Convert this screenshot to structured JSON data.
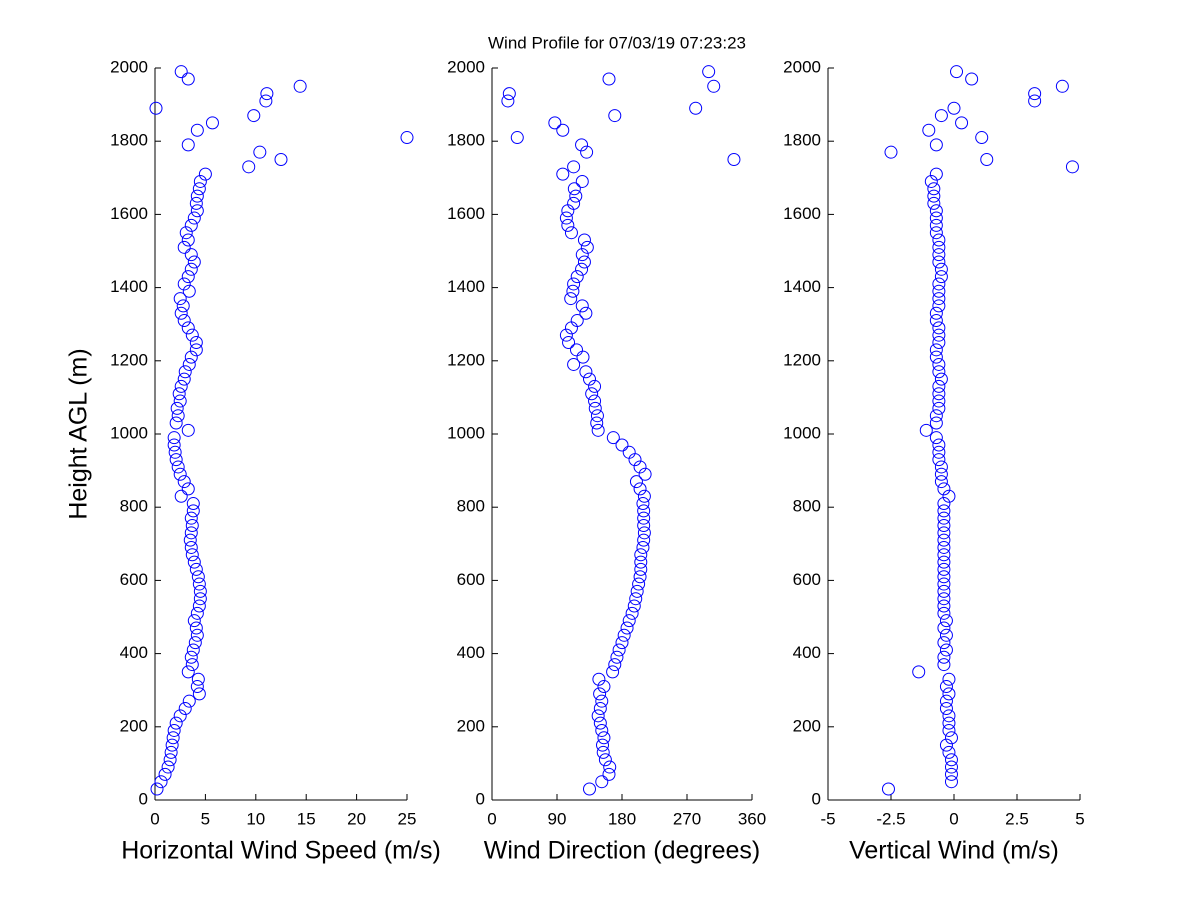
{
  "chart_data": [
    {
      "type": "scatter",
      "xlabel": "Horizontal Wind Speed (m/s)",
      "ylabel": "Height AGL (m)",
      "color": "#0000ff",
      "xlim": [
        0,
        25
      ],
      "xticks": [
        0,
        5,
        10,
        15,
        20,
        25
      ],
      "ylim": [
        0,
        2000
      ],
      "yticks": [
        0,
        200,
        400,
        600,
        800,
        1000,
        1200,
        1400,
        1600,
        1800,
        2000
      ],
      "x": [
        0.2,
        0.6,
        1.0,
        1.3,
        1.5,
        1.6,
        1.7,
        1.8,
        1.9,
        2.1,
        2.5,
        3.0,
        3.4,
        4.4,
        4.2,
        4.3,
        3.3,
        3.7,
        3.6,
        3.8,
        4.0,
        4.2,
        4.1,
        3.9,
        4.2,
        4.4,
        4.5,
        4.5,
        4.4,
        4.3,
        4.1,
        3.9,
        3.7,
        3.6,
        3.5,
        3.6,
        3.7,
        3.6,
        3.8,
        3.8,
        2.6,
        3.3,
        2.9,
        2.5,
        2.3,
        2.1,
        2.0,
        1.9,
        1.9,
        3.3,
        2.1,
        2.3,
        2.2,
        2.5,
        2.4,
        2.6,
        2.9,
        3.0,
        3.4,
        3.6,
        4.1,
        4.1,
        3.7,
        3.3,
        2.9,
        2.6,
        2.8,
        2.5,
        3.4,
        2.9,
        3.3,
        3.6,
        3.9,
        3.6,
        2.9,
        3.3,
        3.1,
        3.6,
        3.9,
        4.2,
        4.1,
        4.2,
        4.4,
        4.5,
        5.0,
        9.3,
        12.5,
        10.4,
        3.3,
        25.0,
        4.2,
        5.7,
        9.8,
        0.1,
        11.0,
        11.1,
        14.4,
        3.3,
        2.6
      ],
      "y": [
        30,
        50,
        70,
        90,
        110,
        130,
        150,
        170,
        190,
        210,
        230,
        250,
        270,
        290,
        310,
        330,
        350,
        370,
        390,
        410,
        430,
        450,
        470,
        490,
        510,
        530,
        550,
        570,
        590,
        610,
        630,
        650,
        670,
        690,
        710,
        730,
        750,
        770,
        790,
        810,
        830,
        850,
        870,
        890,
        910,
        930,
        950,
        970,
        990,
        1010,
        1030,
        1050,
        1070,
        1090,
        1110,
        1130,
        1150,
        1170,
        1190,
        1210,
        1230,
        1250,
        1270,
        1290,
        1310,
        1330,
        1350,
        1370,
        1390,
        1410,
        1430,
        1450,
        1470,
        1490,
        1510,
        1530,
        1550,
        1570,
        1590,
        1610,
        1630,
        1650,
        1670,
        1690,
        1710,
        1730,
        1750,
        1770,
        1790,
        1810,
        1830,
        1850,
        1870,
        1890,
        1910,
        1930,
        1950,
        1970,
        1990
      ]
    },
    {
      "type": "scatter",
      "title": "Wind Profile for  07/03/19 07:23:23",
      "xlabel": "Wind Direction (degrees)",
      "color": "#0000ff",
      "xlim": [
        0,
        360
      ],
      "xticks": [
        0,
        90,
        180,
        270,
        360
      ],
      "ylim": [
        0,
        2000
      ],
      "yticks": [
        0,
        200,
        400,
        600,
        800,
        1000,
        1200,
        1400,
        1600,
        1800,
        2000
      ],
      "x": [
        135,
        152,
        162,
        163,
        157,
        154,
        153,
        155,
        152,
        150,
        147,
        150,
        152,
        149,
        155,
        148,
        167,
        170,
        173,
        176,
        180,
        183,
        187,
        190,
        194,
        197,
        199,
        201,
        203,
        205,
        206,
        206,
        206,
        209,
        210,
        211,
        210,
        210,
        210,
        209,
        211,
        205,
        200,
        212,
        205,
        198,
        190,
        180,
        168,
        147,
        145,
        146,
        143,
        142,
        138,
        142,
        135,
        130,
        113,
        126,
        117,
        106,
        103,
        110,
        118,
        130,
        125,
        109,
        112,
        113,
        118,
        124,
        128,
        125,
        132,
        128,
        110,
        105,
        103,
        105,
        113,
        116,
        114,
        125,
        98,
        113,
        335,
        131,
        124,
        35,
        98,
        87,
        170,
        282,
        22,
        24,
        307,
        162,
        300
      ],
      "y": [
        30,
        50,
        70,
        90,
        110,
        130,
        150,
        170,
        190,
        210,
        230,
        250,
        270,
        290,
        310,
        330,
        350,
        370,
        390,
        410,
        430,
        450,
        470,
        490,
        510,
        530,
        550,
        570,
        590,
        610,
        630,
        650,
        670,
        690,
        710,
        730,
        750,
        770,
        790,
        810,
        830,
        850,
        870,
        890,
        910,
        930,
        950,
        970,
        990,
        1010,
        1030,
        1050,
        1070,
        1090,
        1110,
        1130,
        1150,
        1170,
        1190,
        1210,
        1230,
        1250,
        1270,
        1290,
        1310,
        1330,
        1350,
        1370,
        1390,
        1410,
        1430,
        1450,
        1470,
        1490,
        1510,
        1530,
        1550,
        1570,
        1590,
        1610,
        1630,
        1650,
        1670,
        1690,
        1710,
        1730,
        1750,
        1770,
        1790,
        1810,
        1830,
        1850,
        1870,
        1890,
        1910,
        1930,
        1950,
        1970,
        1990
      ]
    },
    {
      "type": "scatter",
      "xlabel": "Vertical Wind (m/s)",
      "color": "#0000ff",
      "xlim": [
        -5,
        5
      ],
      "xticks": [
        -5,
        -2.5,
        0,
        2.5,
        5
      ],
      "ylim": [
        0,
        2000
      ],
      "yticks": [
        0,
        200,
        400,
        600,
        800,
        1000,
        1200,
        1400,
        1600,
        1800,
        2000
      ],
      "x": [
        -2.6,
        -0.1,
        -0.1,
        -0.1,
        -0.1,
        -0.2,
        -0.3,
        -0.1,
        -0.2,
        -0.2,
        -0.2,
        -0.3,
        -0.3,
        -0.2,
        -0.3,
        -0.2,
        -1.4,
        -0.4,
        -0.4,
        -0.3,
        -0.4,
        -0.3,
        -0.4,
        -0.3,
        -0.4,
        -0.4,
        -0.4,
        -0.4,
        -0.4,
        -0.4,
        -0.4,
        -0.4,
        -0.4,
        -0.4,
        -0.4,
        -0.4,
        -0.4,
        -0.4,
        -0.4,
        -0.4,
        -0.2,
        -0.4,
        -0.5,
        -0.5,
        -0.5,
        -0.6,
        -0.6,
        -0.6,
        -0.7,
        -1.1,
        -0.7,
        -0.7,
        -0.6,
        -0.6,
        -0.6,
        -0.6,
        -0.5,
        -0.6,
        -0.6,
        -0.7,
        -0.7,
        -0.6,
        -0.6,
        -0.6,
        -0.7,
        -0.7,
        -0.6,
        -0.6,
        -0.6,
        -0.6,
        -0.5,
        -0.5,
        -0.6,
        -0.6,
        -0.6,
        -0.6,
        -0.7,
        -0.7,
        -0.7,
        -0.7,
        -0.8,
        -0.8,
        -0.8,
        -0.9,
        -0.7,
        4.7,
        1.3,
        -2.5,
        -0.7,
        1.1,
        -1.0,
        0.3,
        -0.5,
        0.0,
        3.2,
        3.2,
        4.3,
        0.7,
        0.1
      ],
      "y": [
        30,
        50,
        70,
        90,
        110,
        130,
        150,
        170,
        190,
        210,
        230,
        250,
        270,
        290,
        310,
        330,
        350,
        370,
        390,
        410,
        430,
        450,
        470,
        490,
        510,
        530,
        550,
        570,
        590,
        610,
        630,
        650,
        670,
        690,
        710,
        730,
        750,
        770,
        790,
        810,
        830,
        850,
        870,
        890,
        910,
        930,
        950,
        970,
        990,
        1010,
        1030,
        1050,
        1070,
        1090,
        1110,
        1130,
        1150,
        1170,
        1190,
        1210,
        1230,
        1250,
        1270,
        1290,
        1310,
        1330,
        1350,
        1370,
        1390,
        1410,
        1430,
        1450,
        1470,
        1490,
        1510,
        1530,
        1550,
        1570,
        1590,
        1610,
        1630,
        1650,
        1670,
        1690,
        1710,
        1730,
        1750,
        1770,
        1790,
        1810,
        1830,
        1850,
        1870,
        1890,
        1910,
        1930,
        1950,
        1970,
        1990
      ]
    }
  ]
}
